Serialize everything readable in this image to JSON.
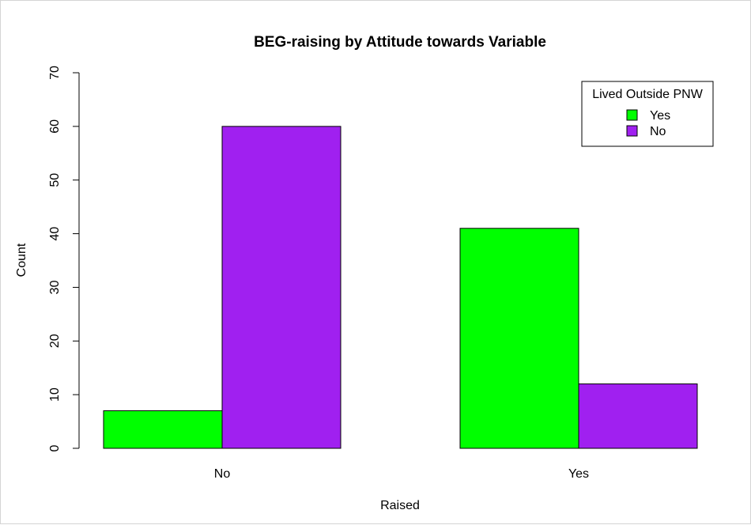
{
  "chart_data": {
    "type": "bar",
    "title": "BEG-raising by Attitude towards Variable",
    "xlabel": "Raised",
    "ylabel": "Count",
    "categories": [
      "No",
      "Yes"
    ],
    "series": [
      {
        "name": "Yes",
        "values": [
          7,
          41
        ],
        "color": "#00ff00"
      },
      {
        "name": "No",
        "values": [
          60,
          12
        ],
        "color": "#a020f0"
      }
    ],
    "ylim": [
      0,
      70
    ],
    "yticks": [
      "0",
      "10",
      "20",
      "30",
      "40",
      "50",
      "60",
      "70"
    ],
    "grid": false,
    "legend": {
      "title": "Lived Outside PNW",
      "placement": "top-right"
    }
  }
}
